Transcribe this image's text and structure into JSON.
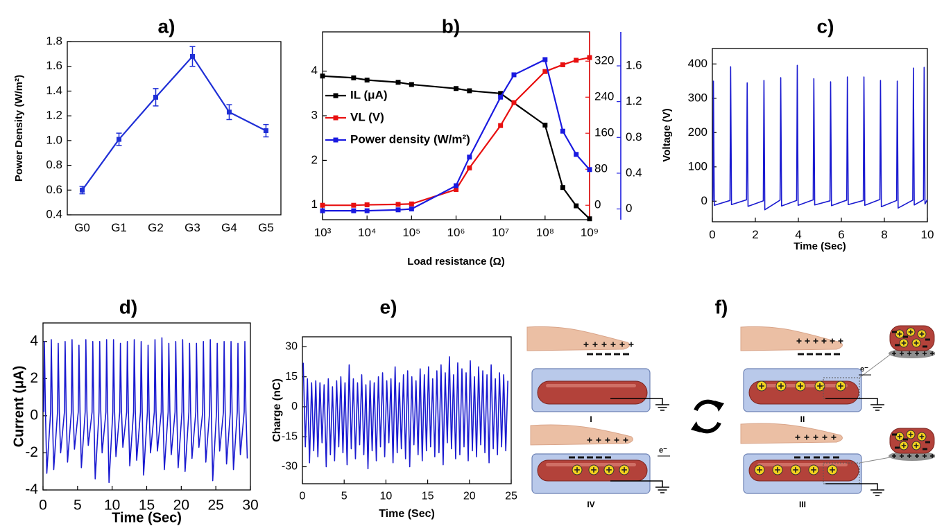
{
  "chart_data": [
    {
      "type": "line",
      "title": "a)",
      "ylabel": "Power Density (W/m²)",
      "categories": [
        "G0",
        "G1",
        "G2",
        "G3",
        "G4",
        "G5"
      ],
      "values": [
        0.6,
        1.01,
        1.35,
        1.68,
        1.23,
        1.08
      ],
      "errors": [
        0.03,
        0.05,
        0.07,
        0.08,
        0.06,
        0.05
      ],
      "color": "#1f2fd6",
      "marker": "square",
      "ylim": [
        0.4,
        1.8
      ],
      "yticks": [
        0.4,
        0.6,
        0.8,
        {
          "value": 1,
          "label": "1.0"
        },
        1.2,
        1.4,
        1.6,
        1.8
      ]
    },
    {
      "type": "line",
      "title": "b)",
      "xlabel": "Load resistance (Ω)",
      "xscale": "log",
      "xlim": [
        1000,
        1000000000
      ],
      "xticks": [
        {
          "value": 1000,
          "label": "10³"
        },
        {
          "value": 10000,
          "label": "10⁴"
        },
        {
          "value": 100000,
          "label": "10⁵"
        },
        {
          "value": 1000000,
          "label": "10⁶"
        },
        {
          "value": 10000000,
          "label": "10⁷"
        },
        {
          "value": 100000000,
          "label": "10⁸"
        },
        {
          "value": 1000000000,
          "label": "10⁹"
        }
      ],
      "ylim": [
        0.67,
        4.88
      ],
      "yticks": [
        1,
        2,
        3,
        4
      ],
      "y2lim": [
        -32,
        385
      ],
      "y2ticks": [
        0,
        80,
        160,
        240,
        320
      ],
      "y3lim": [
        -0.12,
        1.98
      ],
      "y3ticks": [
        0,
        0.4,
        0.8,
        1.2,
        1.6
      ],
      "marker": "square",
      "legend": "upper left",
      "series": [
        {
          "name": "IL (μA)",
          "color": "#000000",
          "x": [
            1000,
            5000,
            10000,
            50000,
            100000,
            1000000,
            2000000,
            10000000,
            100000000,
            250000000,
            500000000,
            1000000000
          ],
          "values": [
            3.89,
            3.85,
            3.8,
            3.75,
            3.7,
            3.61,
            3.56,
            3.5,
            2.79,
            1.39,
            0.98,
            0.69
          ]
        },
        {
          "name": "VL (V)",
          "color": "#e81010",
          "axis": "y2",
          "x": [
            1000,
            5000,
            10000,
            50000,
            100000,
            1000000,
            2000000,
            10000000,
            20000000,
            100000000,
            250000000,
            500000000,
            1000000000
          ],
          "values": [
            0,
            0,
            1,
            2,
            3,
            35,
            83,
            177,
            228,
            297,
            312,
            322,
            328
          ]
        },
        {
          "name": "Power density (W/m²)",
          "color": "#1a1ae0",
          "axis": "y3",
          "x": [
            1000,
            5000,
            10000,
            50000,
            100000,
            1000000,
            2000000,
            10000000,
            20000000,
            100000000,
            250000000,
            500000000,
            1000000000
          ],
          "values": [
            -0.02,
            -0.02,
            -0.02,
            -0.01,
            0,
            0.26,
            0.58,
            1.25,
            1.5,
            1.67,
            0.87,
            0.61,
            0.44
          ]
        }
      ]
    },
    {
      "type": "line",
      "title": "c)",
      "xlabel": "Time (Sec)",
      "ylabel": "Voltage (V)",
      "color": "#1a1ad0",
      "xlim": [
        0,
        10
      ],
      "xticks": [
        0,
        2,
        4,
        6,
        8,
        10
      ],
      "ylim": [
        -60,
        445
      ],
      "yticks": [
        0,
        100,
        200,
        300,
        400
      ],
      "x": [
        0,
        0.03,
        0.05,
        0.09,
        0.82,
        0.85,
        0.89,
        1.59,
        1.62,
        1.66,
        2.37,
        2.4,
        2.44,
        3.15,
        3.18,
        3.22,
        3.92,
        3.95,
        3.99,
        4.69,
        4.72,
        4.76,
        5.47,
        5.5,
        5.54,
        6.25,
        6.28,
        6.32,
        7.02,
        7.05,
        7.09,
        7.79,
        7.82,
        7.86,
        8.57,
        8.6,
        8.64,
        9.32,
        9.35,
        9.39,
        9.82,
        9.85,
        9.89,
        10
      ],
      "values": [
        5,
        3,
        350,
        -12,
        2,
        392,
        -10,
        4,
        345,
        -15,
        1,
        352,
        -25,
        3,
        360,
        -14,
        2,
        396,
        -12,
        4,
        357,
        -11,
        1,
        348,
        -13,
        3,
        362,
        -10,
        2,
        362,
        -12,
        5,
        352,
        -16,
        2,
        350,
        -20,
        3,
        388,
        -11,
        4,
        390,
        -8,
        5
      ]
    },
    {
      "type": "line",
      "title": "d)",
      "xlabel": "Time (Sec)",
      "ylabel": "Current (μA)",
      "color": "#1a1ad0",
      "xlim": [
        0,
        30
      ],
      "xticks": [
        0,
        5,
        10,
        15,
        20,
        25,
        30
      ],
      "ylim": [
        -4,
        5
      ],
      "yticks": [
        -4,
        -2,
        0,
        2,
        4
      ],
      "x": [
        0.1,
        0.2,
        0.35,
        0.55,
        1.1,
        1.2,
        1.35,
        1.55,
        2.1,
        2.2,
        2.35,
        2.55,
        3.1,
        3.2,
        3.35,
        3.55,
        4.1,
        4.2,
        4.35,
        4.55,
        5.1,
        5.2,
        5.35,
        5.55,
        6.1,
        6.2,
        6.35,
        6.55,
        7.1,
        7.2,
        7.35,
        7.55,
        8.1,
        8.2,
        8.35,
        8.55,
        9.1,
        9.2,
        9.35,
        9.55,
        10.1,
        10.2,
        10.35,
        10.55,
        11.1,
        11.2,
        11.35,
        11.55,
        12.1,
        12.2,
        12.35,
        12.55,
        13.1,
        13.2,
        13.35,
        13.55,
        14.1,
        14.2,
        14.35,
        14.55,
        15.1,
        15.2,
        15.35,
        15.55,
        16.1,
        16.2,
        16.35,
        16.55,
        17.1,
        17.2,
        17.35,
        17.55,
        18.1,
        18.2,
        18.35,
        18.55,
        19.1,
        19.2,
        19.35,
        19.55,
        20.1,
        20.2,
        20.35,
        20.55,
        21.1,
        21.2,
        21.35,
        21.55,
        22.1,
        22.2,
        22.35,
        22.55,
        23.1,
        23.2,
        23.35,
        23.55,
        24.1,
        24.2,
        24.35,
        24.55,
        25.1,
        25.2,
        25.35,
        25.55,
        26.1,
        26.2,
        26.35,
        26.55,
        27.1,
        27.2,
        27.35,
        27.55,
        28.1,
        28.2,
        28.35,
        28.55,
        29.1,
        29.2,
        29.35,
        29.55
      ],
      "values": [
        0.2,
        4.0,
        0.3,
        -3.1,
        0.2,
        4.1,
        0.3,
        -2.9,
        0.2,
        3.9,
        0.3,
        -2.0,
        0.2,
        4.0,
        0.3,
        -2.5,
        0.2,
        4.1,
        0.3,
        -1.8,
        0.2,
        3.8,
        0.3,
        -2.8,
        0.2,
        4.1,
        0.3,
        -1.6,
        0.2,
        4.0,
        0.3,
        -3.4,
        0.2,
        4.0,
        0.3,
        -2.0,
        0.2,
        4.1,
        0.3,
        -3.6,
        0.2,
        4.1,
        0.3,
        -2.2,
        0.2,
        3.9,
        0.3,
        -1.7,
        0.2,
        4.0,
        0.3,
        -2.7,
        0.2,
        4.1,
        0.3,
        -2.4,
        0.2,
        4.0,
        0.3,
        -3.2,
        0.2,
        3.8,
        0.3,
        -2.0,
        0.2,
        4.1,
        0.3,
        -1.9,
        0.2,
        4.2,
        0.3,
        -2.9,
        0.2,
        3.9,
        0.3,
        -2.1,
        0.2,
        4.0,
        0.3,
        -2.8,
        0.2,
        4.1,
        0.3,
        -3.0,
        0.2,
        3.9,
        0.3,
        -2.3,
        0.2,
        3.9,
        0.3,
        -1.7,
        0.2,
        4.0,
        0.3,
        -2.5,
        0.2,
        4.1,
        0.3,
        -3.5,
        0.2,
        3.9,
        0.3,
        -1.9,
        0.2,
        4.0,
        0.3,
        -2.6,
        0.2,
        4.0,
        0.3,
        -2.9,
        0.2,
        3.9,
        0.3,
        -2.1,
        0.2,
        4.0,
        0.3,
        -2.3
      ]
    },
    {
      "type": "line",
      "title": "e)",
      "xlabel": "Time (Sec)",
      "ylabel": "Charge (nC)",
      "color": "#1a1ad0",
      "xlim": [
        0,
        25
      ],
      "xticks": [
        0,
        5,
        10,
        15,
        20,
        25
      ],
      "ylim": [
        -38.5,
        35
      ],
      "yticks": [
        -30,
        -15,
        0,
        15,
        30
      ],
      "x": [
        0.1,
        0.35,
        0.6,
        0.85,
        1.1,
        1.35,
        1.6,
        1.85,
        2.1,
        2.35,
        2.6,
        2.85,
        3.1,
        3.35,
        3.6,
        3.85,
        4.1,
        4.35,
        4.6,
        4.85,
        5.1,
        5.35,
        5.6,
        5.85,
        6.1,
        6.35,
        6.6,
        6.85,
        7.1,
        7.35,
        7.6,
        7.85,
        8.1,
        8.35,
        8.6,
        8.85,
        9.1,
        9.35,
        9.6,
        9.85,
        10.1,
        10.35,
        10.6,
        10.85,
        11.1,
        11.35,
        11.6,
        11.85,
        12.1,
        12.35,
        12.6,
        12.85,
        13.1,
        13.35,
        13.6,
        13.85,
        14.1,
        14.35,
        14.6,
        14.85,
        15.1,
        15.35,
        15.6,
        15.85,
        16.1,
        16.35,
        16.6,
        16.85,
        17.1,
        17.35,
        17.6,
        17.85,
        18.1,
        18.35,
        18.6,
        18.85,
        19.1,
        19.35,
        19.6,
        19.85,
        20.1,
        20.35,
        20.6,
        20.85,
        21.1,
        21.35,
        21.6,
        21.85,
        22.1,
        22.35,
        22.6,
        22.85,
        23.1,
        23.35,
        23.6,
        23.85,
        24.1,
        24.35,
        24.6
      ],
      "values": [
        22,
        -20,
        14,
        -28,
        12,
        -22,
        13,
        -25,
        12,
        -18,
        11,
        -30,
        14,
        -24,
        10,
        -27,
        13,
        -20,
        15,
        -23,
        12,
        -29,
        21,
        -21,
        14,
        -26,
        12,
        -19,
        16,
        -24,
        11,
        -31,
        13,
        -22,
        12,
        -27,
        15,
        -20,
        17,
        -25,
        13,
        -18,
        14,
        -28,
        20,
        -23,
        12,
        -21,
        16,
        -26,
        18,
        -30,
        15,
        -19,
        13,
        -24,
        19,
        -27,
        16,
        -22,
        20,
        -20,
        14,
        -25,
        18,
        -23,
        21,
        -29,
        17,
        -18,
        25,
        -21,
        16,
        -26,
        22,
        -24,
        19,
        -20,
        17,
        -27,
        23,
        -22,
        15,
        -25,
        20,
        -19,
        18,
        -23,
        16,
        -28,
        21,
        -21,
        14,
        -24,
        17,
        -20,
        16,
        -22,
        13
      ]
    }
  ],
  "diagram": {
    "title": "f)",
    "stages": [
      "I",
      "II",
      "III",
      "IV"
    ],
    "electron": "e⁻"
  }
}
